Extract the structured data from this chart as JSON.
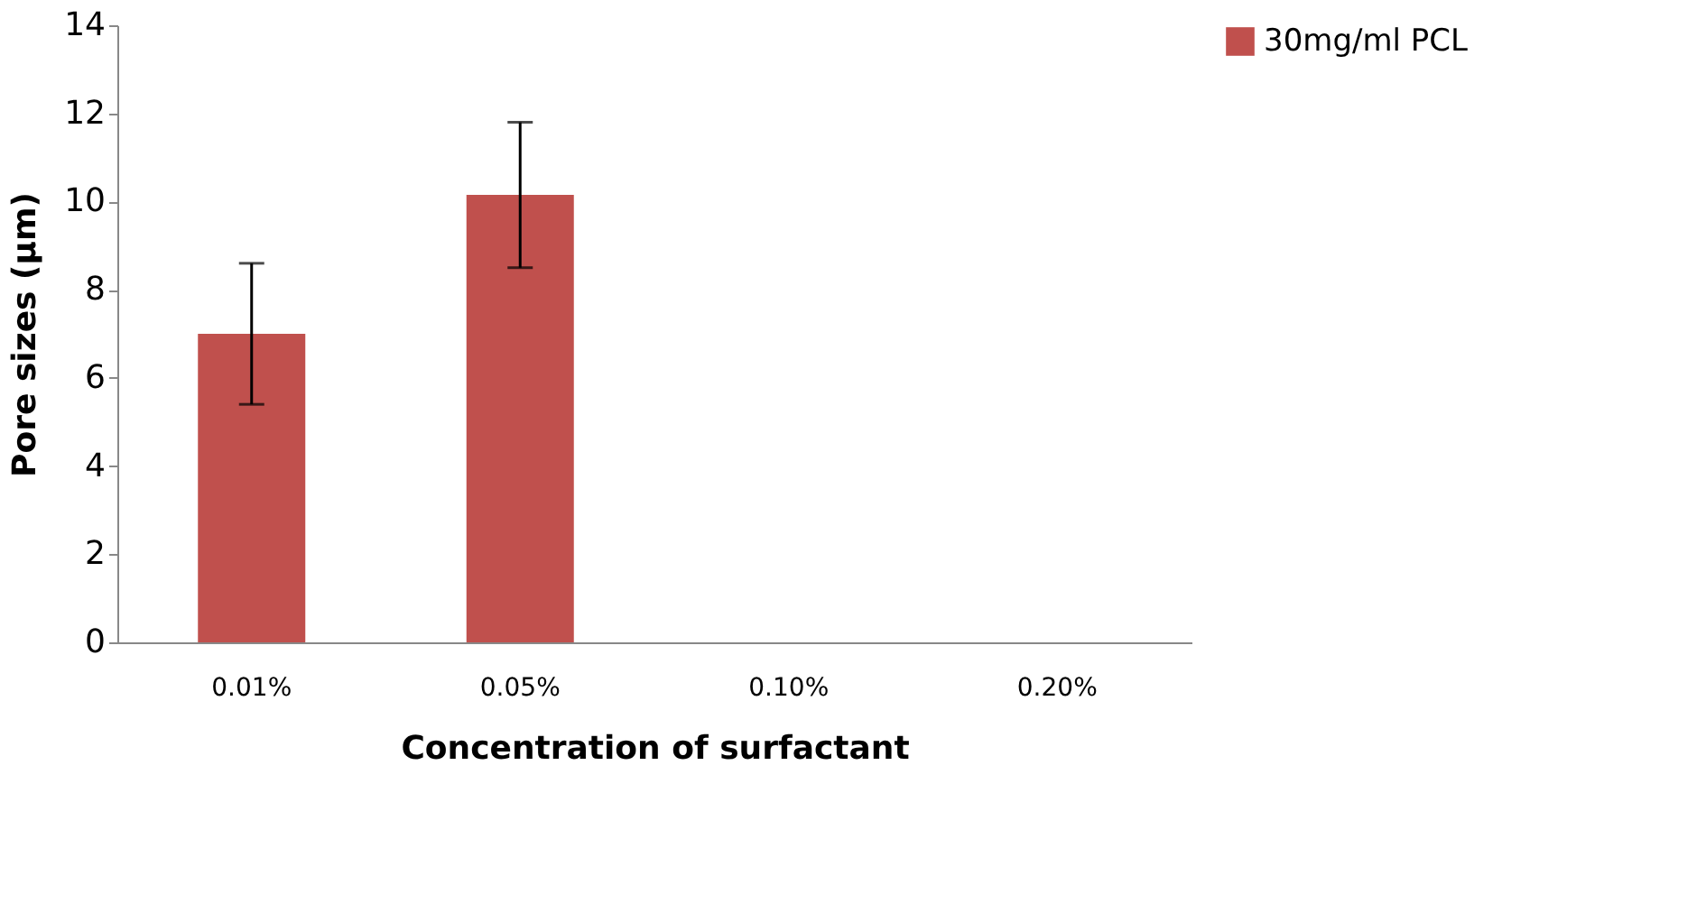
{
  "chart_data": {
    "type": "bar",
    "xlabel": "Concentration of surfactant",
    "ylabel": "Pore sizes (µm)",
    "categories": [
      "0.01%",
      "0.05%",
      "0.10%",
      "0.20%"
    ],
    "series": [
      {
        "name": "30mg/ml PCL",
        "color": "#c0504d",
        "values": [
          7.0,
          10.15,
          null,
          null
        ],
        "errors": [
          1.6,
          1.65,
          null,
          null
        ]
      }
    ],
    "ylim": [
      0,
      14
    ],
    "yticks": [
      0,
      2,
      4,
      6,
      8,
      10,
      12,
      14
    ],
    "grid": false,
    "legend": "right"
  }
}
